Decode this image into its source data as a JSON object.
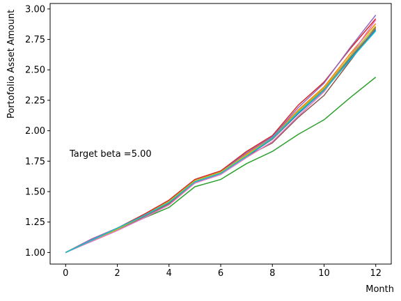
{
  "chart_data": {
    "type": "line",
    "title": "",
    "xlabel": "Month",
    "ylabel": "Portofolio Asset Amount",
    "annotation": "Target beta =5.00",
    "xlim": [
      -0.6,
      12.6
    ],
    "ylim": [
      0.905,
      3.045
    ],
    "x_ticks": [
      0,
      2,
      4,
      6,
      8,
      10,
      12
    ],
    "x_tick_labels": [
      "0",
      "2",
      "4",
      "6",
      "8",
      "10",
      "12"
    ],
    "y_ticks": [
      1.0,
      1.25,
      1.5,
      1.75,
      2.0,
      2.25,
      2.5,
      2.75,
      3.0
    ],
    "y_tick_labels": [
      "1.00",
      "1.25",
      "1.50",
      "1.75",
      "2.00",
      "2.25",
      "2.50",
      "2.75",
      "3.00"
    ],
    "grid": false,
    "legend": "none",
    "x": [
      0,
      1,
      2,
      3,
      4,
      5,
      6,
      7,
      8,
      9,
      10,
      11,
      12
    ],
    "series": [
      {
        "color": "#1f77b4",
        "values": [
          1.0,
          1.1,
          1.19,
          1.29,
          1.41,
          1.57,
          1.65,
          1.79,
          1.93,
          2.14,
          2.33,
          2.59,
          2.83
        ]
      },
      {
        "color": "#ff7f0e",
        "values": [
          1.0,
          1.11,
          1.2,
          1.3,
          1.43,
          1.6,
          1.67,
          1.81,
          1.95,
          2.17,
          2.36,
          2.63,
          2.88
        ]
      },
      {
        "color": "#2ca02c",
        "values": [
          1.0,
          1.1,
          1.19,
          1.28,
          1.37,
          1.54,
          1.6,
          1.73,
          1.83,
          1.97,
          2.09,
          2.27,
          2.44
        ]
      },
      {
        "color": "#d62728",
        "values": [
          1.0,
          1.11,
          1.2,
          1.31,
          1.43,
          1.6,
          1.67,
          1.83,
          1.96,
          2.21,
          2.4,
          2.67,
          2.92
        ]
      },
      {
        "color": "#9467bd",
        "values": [
          1.0,
          1.11,
          1.2,
          1.3,
          1.42,
          1.59,
          1.66,
          1.82,
          1.95,
          2.19,
          2.39,
          2.68,
          2.95
        ]
      },
      {
        "color": "#8c564b",
        "values": [
          1.0,
          1.1,
          1.19,
          1.29,
          1.4,
          1.58,
          1.65,
          1.79,
          1.9,
          2.11,
          2.29,
          2.57,
          2.85
        ]
      },
      {
        "color": "#e377c2",
        "values": [
          1.0,
          1.09,
          1.18,
          1.28,
          1.39,
          1.57,
          1.64,
          1.78,
          1.91,
          2.12,
          2.32,
          2.61,
          2.91
        ]
      },
      {
        "color": "#7f7f7f",
        "values": [
          1.0,
          1.1,
          1.19,
          1.29,
          1.41,
          1.58,
          1.65,
          1.8,
          1.93,
          2.15,
          2.34,
          2.6,
          2.84
        ]
      },
      {
        "color": "#bcbd22",
        "values": [
          1.0,
          1.1,
          1.19,
          1.3,
          1.42,
          1.59,
          1.66,
          1.8,
          1.94,
          2.16,
          2.35,
          2.61,
          2.86
        ]
      },
      {
        "color": "#17becf",
        "values": [
          1.0,
          1.1,
          1.2,
          1.3,
          1.41,
          1.58,
          1.65,
          1.79,
          1.94,
          2.15,
          2.33,
          2.58,
          2.82
        ]
      }
    ]
  }
}
